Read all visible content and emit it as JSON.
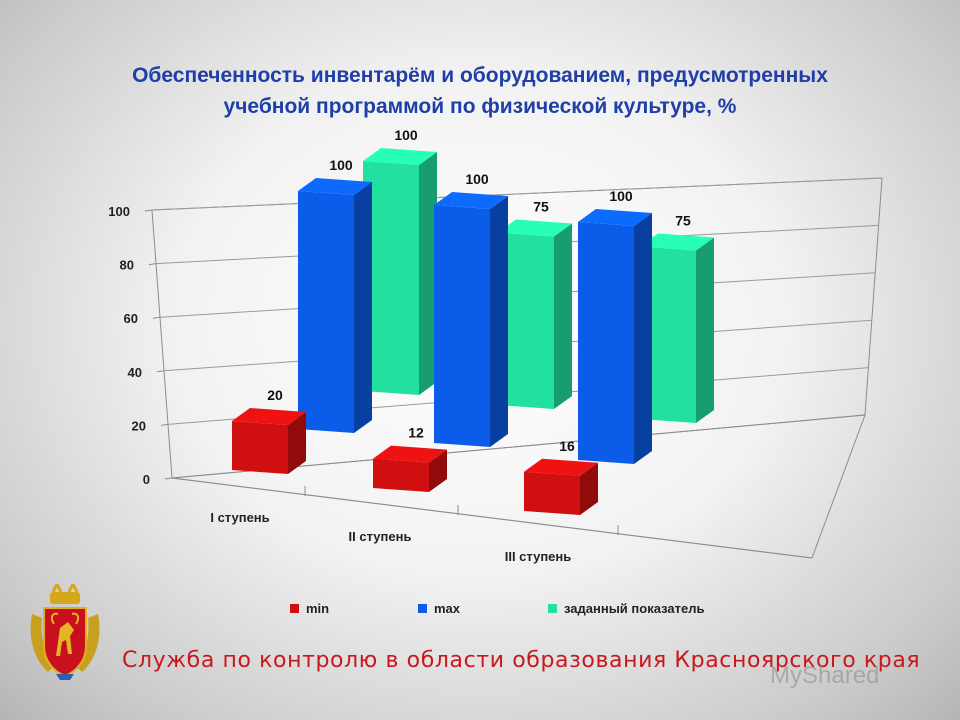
{
  "title_line1": "Обеспеченность  инвентарём и оборудованием, предусмотренных",
  "title_line2": "учебной программой по физической культуре, %",
  "chart_data": {
    "type": "bar",
    "categories": [
      "I ступень",
      "II ступень",
      "III ступень"
    ],
    "series": [
      {
        "name": "min",
        "values": [
          20,
          12,
          16
        ],
        "color": "#d01010"
      },
      {
        "name": "max",
        "values": [
          100,
          100,
          100
        ],
        "color": "#0b5ce8"
      },
      {
        "name": "заданный показатель",
        "values": [
          100,
          75,
          75
        ],
        "color": "#22e0a0"
      }
    ],
    "ylim": [
      0,
      100
    ],
    "yticks": [
      0,
      20,
      40,
      60,
      80,
      100
    ],
    "grid": true,
    "three_d": true,
    "legend_position": "bottom"
  },
  "footer_text": "Служба по контролю в области образования Красноярского края",
  "watermark_text": "MyShared",
  "emblem_icon": "krasnoyarsk-coat-of-arms-icon"
}
